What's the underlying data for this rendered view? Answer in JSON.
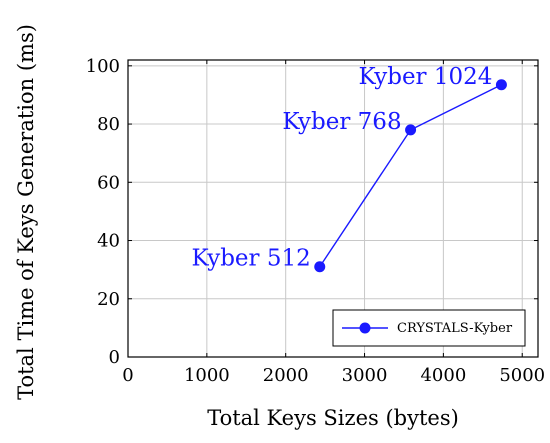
{
  "chart_data": {
    "type": "line",
    "xlabel": "Total Keys Sizes (bytes)",
    "ylabel": "Total Time of Keys Generation (ms)",
    "xlim": [
      0,
      5200
    ],
    "ylim": [
      0,
      102
    ],
    "xticks": [
      0,
      1000,
      2000,
      3000,
      4000,
      5000
    ],
    "yticks": [
      0,
      20,
      40,
      60,
      80,
      100
    ],
    "grid": true,
    "legend_position": "bottom-right",
    "colors": {
      "series": "#1a1aff"
    },
    "series": [
      {
        "name": "CRYSTALS-Kyber",
        "points": [
          {
            "x": 2432,
            "y": 31,
            "label": "Kyber 512"
          },
          {
            "x": 3584,
            "y": 78,
            "label": "Kyber 768"
          },
          {
            "x": 4736,
            "y": 93.5,
            "label": "Kyber 1024"
          }
        ]
      }
    ]
  }
}
